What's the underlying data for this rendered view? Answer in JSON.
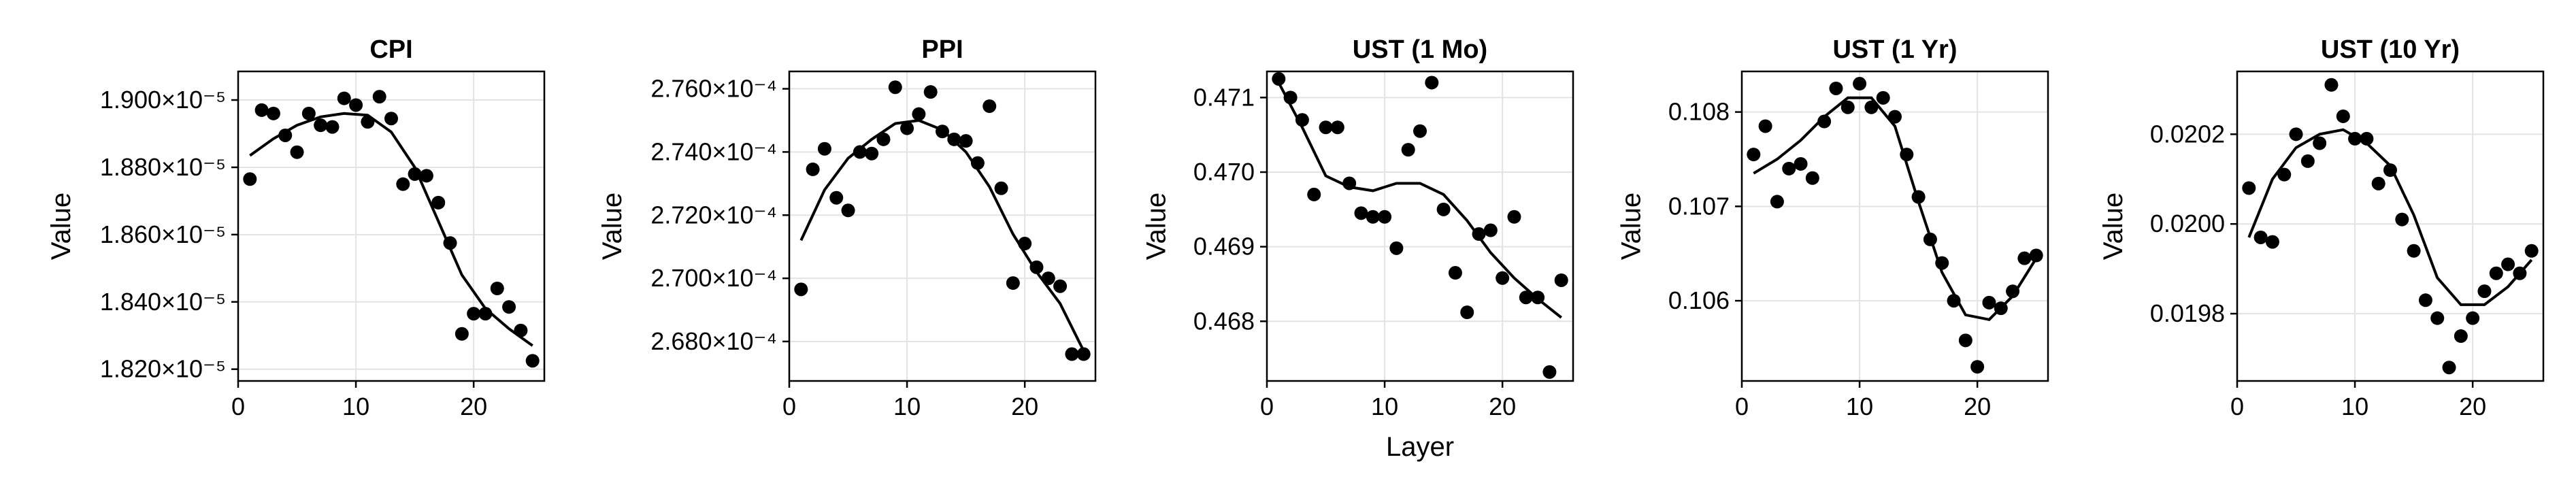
{
  "chart_data": [
    {
      "type": "scatter",
      "title": "CPI",
      "xlabel": "",
      "ylabel": "Value",
      "xlim": [
        0,
        26
      ],
      "ylim": [
        1.8165e-05,
        1.9085e-05
      ],
      "xticks": [
        0,
        10,
        20
      ],
      "xtick_labels": [
        "0",
        "10",
        "20"
      ],
      "yticks": [
        1.82e-05,
        1.84e-05,
        1.86e-05,
        1.88e-05,
        1.9e-05
      ],
      "ytick_labels": [
        "1.820×10⁻⁵",
        "1.840×10⁻⁵",
        "1.860×10⁻⁵",
        "1.880×10⁻⁵",
        "1.900×10⁻⁵"
      ],
      "grid": true,
      "points": {
        "x": [
          1,
          2,
          3,
          4,
          5,
          6,
          7,
          8,
          9,
          10,
          11,
          12,
          13,
          14,
          15,
          16,
          17,
          18,
          19,
          20,
          21,
          22,
          23,
          24,
          25
        ],
        "y": [
          1.8765e-05,
          1.897e-05,
          1.896e-05,
          1.8895e-05,
          1.8845e-05,
          1.896e-05,
          1.8925e-05,
          1.892e-05,
          1.9005e-05,
          1.8985e-05,
          1.8935e-05,
          1.901e-05,
          1.8945e-05,
          1.875e-05,
          1.878e-05,
          1.8775e-05,
          1.8695e-05,
          1.8575e-05,
          1.8305e-05,
          1.8365e-05,
          1.8365e-05,
          1.844e-05,
          1.8385e-05,
          1.8315e-05,
          1.8225e-05
        ]
      },
      "fit": {
        "x": [
          1,
          3,
          5,
          7,
          9,
          11,
          13,
          15,
          17,
          19,
          21,
          23,
          25
        ],
        "y": [
          1.8835e-05,
          1.8885e-05,
          1.8925e-05,
          1.895e-05,
          1.896e-05,
          1.8955e-05,
          1.8905e-05,
          1.88e-05,
          1.864e-05,
          1.848e-05,
          1.838e-05,
          1.832e-05,
          1.827e-05
        ]
      }
    },
    {
      "type": "scatter",
      "title": "PPI",
      "xlabel": "",
      "ylabel": "Value",
      "xlim": [
        0,
        26
      ],
      "ylim": [
        0.00026675,
        0.00027655
      ],
      "xticks": [
        0,
        10,
        20
      ],
      "xtick_labels": [
        "0",
        "10",
        "20"
      ],
      "yticks": [
        0.000268,
        0.00027,
        0.000272,
        0.000274,
        0.000276
      ],
      "ytick_labels": [
        "2.680×10⁻⁴",
        "2.700×10⁻⁴",
        "2.720×10⁻⁴",
        "2.740×10⁻⁴",
        "2.760×10⁻⁴"
      ],
      "grid": true,
      "points": {
        "x": [
          1,
          2,
          3,
          4,
          5,
          6,
          7,
          8,
          9,
          10,
          11,
          12,
          13,
          14,
          15,
          16,
          17,
          18,
          19,
          20,
          21,
          22,
          23,
          24,
          25
        ],
        "y": [
          0.00026965,
          0.00027345,
          0.0002741,
          0.00027255,
          0.00027215,
          0.000274,
          0.00027395,
          0.0002744,
          0.00027605,
          0.00027475,
          0.0002752,
          0.0002759,
          0.00027465,
          0.0002744,
          0.00027435,
          0.00027365,
          0.00027545,
          0.00027285,
          0.00026985,
          0.0002711,
          0.00027035,
          0.00027,
          0.00026975,
          0.0002676,
          0.0002676
        ]
      },
      "fit": {
        "x": [
          1,
          3,
          5,
          7,
          9,
          11,
          13,
          15,
          17,
          19,
          21,
          23,
          25
        ],
        "y": [
          0.0002712,
          0.0002728,
          0.0002738,
          0.0002744,
          0.0002749,
          0.000275,
          0.0002747,
          0.000274,
          0.0002729,
          0.0002714,
          0.0002702,
          0.0002692,
          0.0002677
        ]
      }
    },
    {
      "type": "scatter",
      "title": "UST (1 Mo)",
      "xlabel": "Layer",
      "ylabel": "Value",
      "xlim": [
        0,
        26
      ],
      "ylim": [
        0.4672,
        0.47135
      ],
      "xticks": [
        0,
        10,
        20
      ],
      "xtick_labels": [
        "0",
        "10",
        "20"
      ],
      "yticks": [
        0.468,
        0.469,
        0.47,
        0.471
      ],
      "ytick_labels": [
        "0.468",
        "0.469",
        "0.470",
        "0.471"
      ],
      "grid": true,
      "points": {
        "x": [
          1,
          2,
          3,
          4,
          5,
          6,
          7,
          8,
          9,
          10,
          11,
          12,
          13,
          14,
          15,
          16,
          17,
          18,
          19,
          20,
          21,
          22,
          23,
          24,
          25
        ],
        "y": [
          0.47125,
          0.471,
          0.4707,
          0.4697,
          0.4706,
          0.4706,
          0.46985,
          0.46945,
          0.4694,
          0.4694,
          0.46898,
          0.4703,
          0.47055,
          0.4712,
          0.4695,
          0.46865,
          0.46812,
          0.46917,
          0.46922,
          0.46858,
          0.4694,
          0.46832,
          0.46832,
          0.46732,
          0.46855
        ]
      },
      "fit": {
        "x": [
          1,
          3,
          5,
          7,
          9,
          11,
          13,
          15,
          17,
          19,
          21,
          23,
          25
        ],
        "y": [
          0.4712,
          0.4706,
          0.46995,
          0.4698,
          0.46975,
          0.46985,
          0.46985,
          0.4697,
          0.46935,
          0.46892,
          0.46858,
          0.4683,
          0.46805
        ]
      }
    },
    {
      "type": "scatter",
      "title": "UST (1 Yr)",
      "xlabel": "",
      "ylabel": "Value",
      "xlim": [
        0,
        26
      ],
      "ylim": [
        0.10515,
        0.10843
      ],
      "xticks": [
        0,
        10,
        20
      ],
      "xtick_labels": [
        "0",
        "10",
        "20"
      ],
      "yticks": [
        0.106,
        0.107,
        0.108
      ],
      "ytick_labels": [
        "0.106",
        "0.107",
        "0.108"
      ],
      "grid": true,
      "points": {
        "x": [
          1,
          2,
          3,
          4,
          5,
          6,
          7,
          8,
          9,
          10,
          11,
          12,
          13,
          14,
          15,
          16,
          17,
          18,
          19,
          20,
          21,
          22,
          23,
          24,
          25
        ],
        "y": [
          0.10755,
          0.10785,
          0.10705,
          0.1074,
          0.10745,
          0.1073,
          0.1079,
          0.10825,
          0.10805,
          0.1083,
          0.10805,
          0.10815,
          0.10795,
          0.10755,
          0.1071,
          0.10665,
          0.1064,
          0.106,
          0.10558,
          0.1053,
          0.10598,
          0.10592,
          0.1061,
          0.10645,
          0.10648
        ]
      },
      "fit": {
        "x": [
          1,
          3,
          5,
          7,
          9,
          11,
          13,
          15,
          17,
          19,
          21,
          23,
          25
        ],
        "y": [
          0.10735,
          0.1075,
          0.1077,
          0.10795,
          0.10815,
          0.10815,
          0.10785,
          0.10705,
          0.1063,
          0.10585,
          0.1058,
          0.10605,
          0.10645
        ]
      }
    },
    {
      "type": "scatter",
      "title": "UST (10 Yr)",
      "xlabel": "",
      "ylabel": "Value",
      "xlim": [
        0,
        26
      ],
      "ylim": [
        0.01965,
        0.02034
      ],
      "xticks": [
        0,
        10,
        20
      ],
      "xtick_labels": [
        "0",
        "10",
        "20"
      ],
      "yticks": [
        0.0198,
        0.02,
        0.0202
      ],
      "ytick_labels": [
        "0.0198",
        "0.0200",
        "0.0202"
      ],
      "grid": true,
      "points": {
        "x": [
          1,
          2,
          3,
          4,
          5,
          6,
          7,
          8,
          9,
          10,
          11,
          12,
          13,
          14,
          15,
          16,
          17,
          18,
          19,
          20,
          21,
          22,
          23,
          24,
          25
        ],
        "y": [
          0.02008,
          0.01997,
          0.01996,
          0.02011,
          0.0202,
          0.02014,
          0.02018,
          0.02031,
          0.02024,
          0.02019,
          0.02019,
          0.02009,
          0.02012,
          0.02001,
          0.01994,
          0.01983,
          0.01979,
          0.01968,
          0.01975,
          0.01979,
          0.01985,
          0.01989,
          0.01991,
          0.01989,
          0.01994
        ]
      },
      "fit": {
        "x": [
          1,
          3,
          5,
          7,
          9,
          11,
          13,
          15,
          17,
          19,
          21,
          23,
          25
        ],
        "y": [
          0.01997,
          0.0201,
          0.02017,
          0.0202,
          0.02021,
          0.02018,
          0.02013,
          0.02002,
          0.01988,
          0.01982,
          0.01982,
          0.01986,
          0.01992
        ]
      }
    }
  ]
}
